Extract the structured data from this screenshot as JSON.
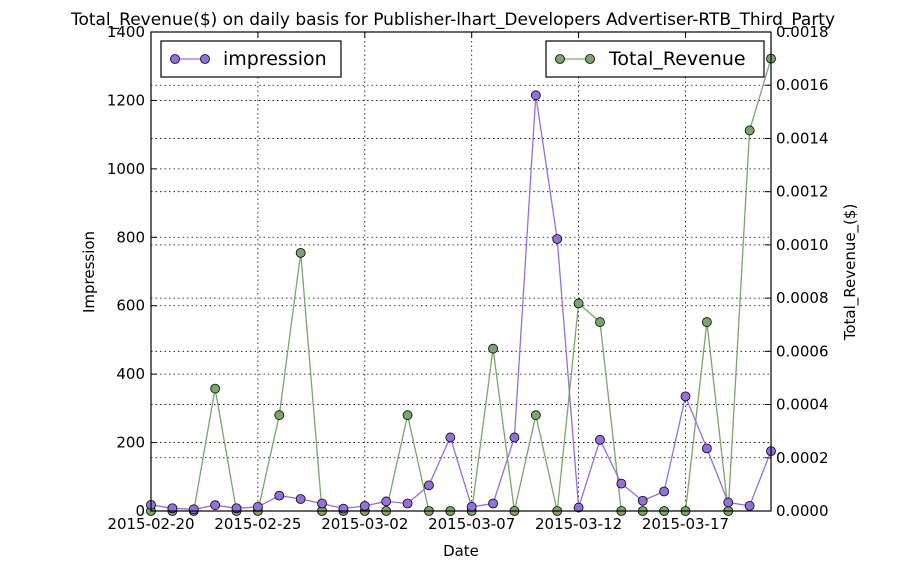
{
  "chart_data": {
    "type": "line",
    "title": "Total_Revenue($) on daily basis for Publisher-lhart_Developers Advertiser-RTB_Third_Party",
    "xlabel": "Date",
    "ylabel": "Impression",
    "y2label": "Total_Revenue_($)",
    "x_range": [
      "2015-02-20",
      "2015-03-21"
    ],
    "ylim": [
      0,
      1400
    ],
    "y2lim": [
      0,
      0.0018
    ],
    "x_ticks": [
      "2015-02-20",
      "2015-02-25",
      "2015-03-02",
      "2015-03-07",
      "2015-03-12",
      "2015-03-17"
    ],
    "y_ticks": [
      0,
      200,
      400,
      600,
      800,
      1000,
      1200,
      1400
    ],
    "y2_ticks": [
      "0.0000",
      "0.0002",
      "0.0004",
      "0.0006",
      "0.0008",
      "0.0010",
      "0.0012",
      "0.0014",
      "0.0016",
      "0.0018"
    ],
    "grid": true,
    "x": [
      "2015-02-20",
      "2015-02-21",
      "2015-02-22",
      "2015-02-23",
      "2015-02-24",
      "2015-02-25",
      "2015-02-26",
      "2015-02-27",
      "2015-02-28",
      "2015-03-01",
      "2015-03-02",
      "2015-03-03",
      "2015-03-04",
      "2015-03-05",
      "2015-03-06",
      "2015-03-07",
      "2015-03-08",
      "2015-03-09",
      "2015-03-10",
      "2015-03-11",
      "2015-03-12",
      "2015-03-13",
      "2015-03-14",
      "2015-03-15",
      "2015-03-16",
      "2015-03-17",
      "2015-03-18",
      "2015-03-19",
      "2015-03-20",
      "2015-03-21"
    ],
    "series": [
      {
        "name": "impression",
        "axis": "left",
        "color": "#9370db",
        "legend_position": "top-left",
        "values": [
          18,
          8,
          5,
          17,
          8,
          12,
          45,
          35,
          22,
          7,
          15,
          28,
          22,
          75,
          215,
          12,
          22,
          215,
          1215,
          795,
          10,
          208,
          80,
          30,
          57,
          335,
          183,
          25,
          15,
          175
        ]
      },
      {
        "name": "Total_Revenue",
        "axis": "right",
        "color": "#79a66a",
        "legend_position": "top-right",
        "values": [
          0.0,
          0.0,
          0.0,
          0.00046,
          0.0,
          0.0,
          0.00036,
          0.00097,
          0.0,
          0.0,
          0.0,
          0.0,
          0.00036,
          0.0,
          0.0,
          0.0,
          0.00061,
          0.0,
          0.00036,
          0.0,
          0.00078,
          0.00071,
          0.0,
          0.0,
          0.0,
          0.0,
          0.00071,
          0.0,
          0.00143,
          0.0017
        ]
      }
    ]
  }
}
